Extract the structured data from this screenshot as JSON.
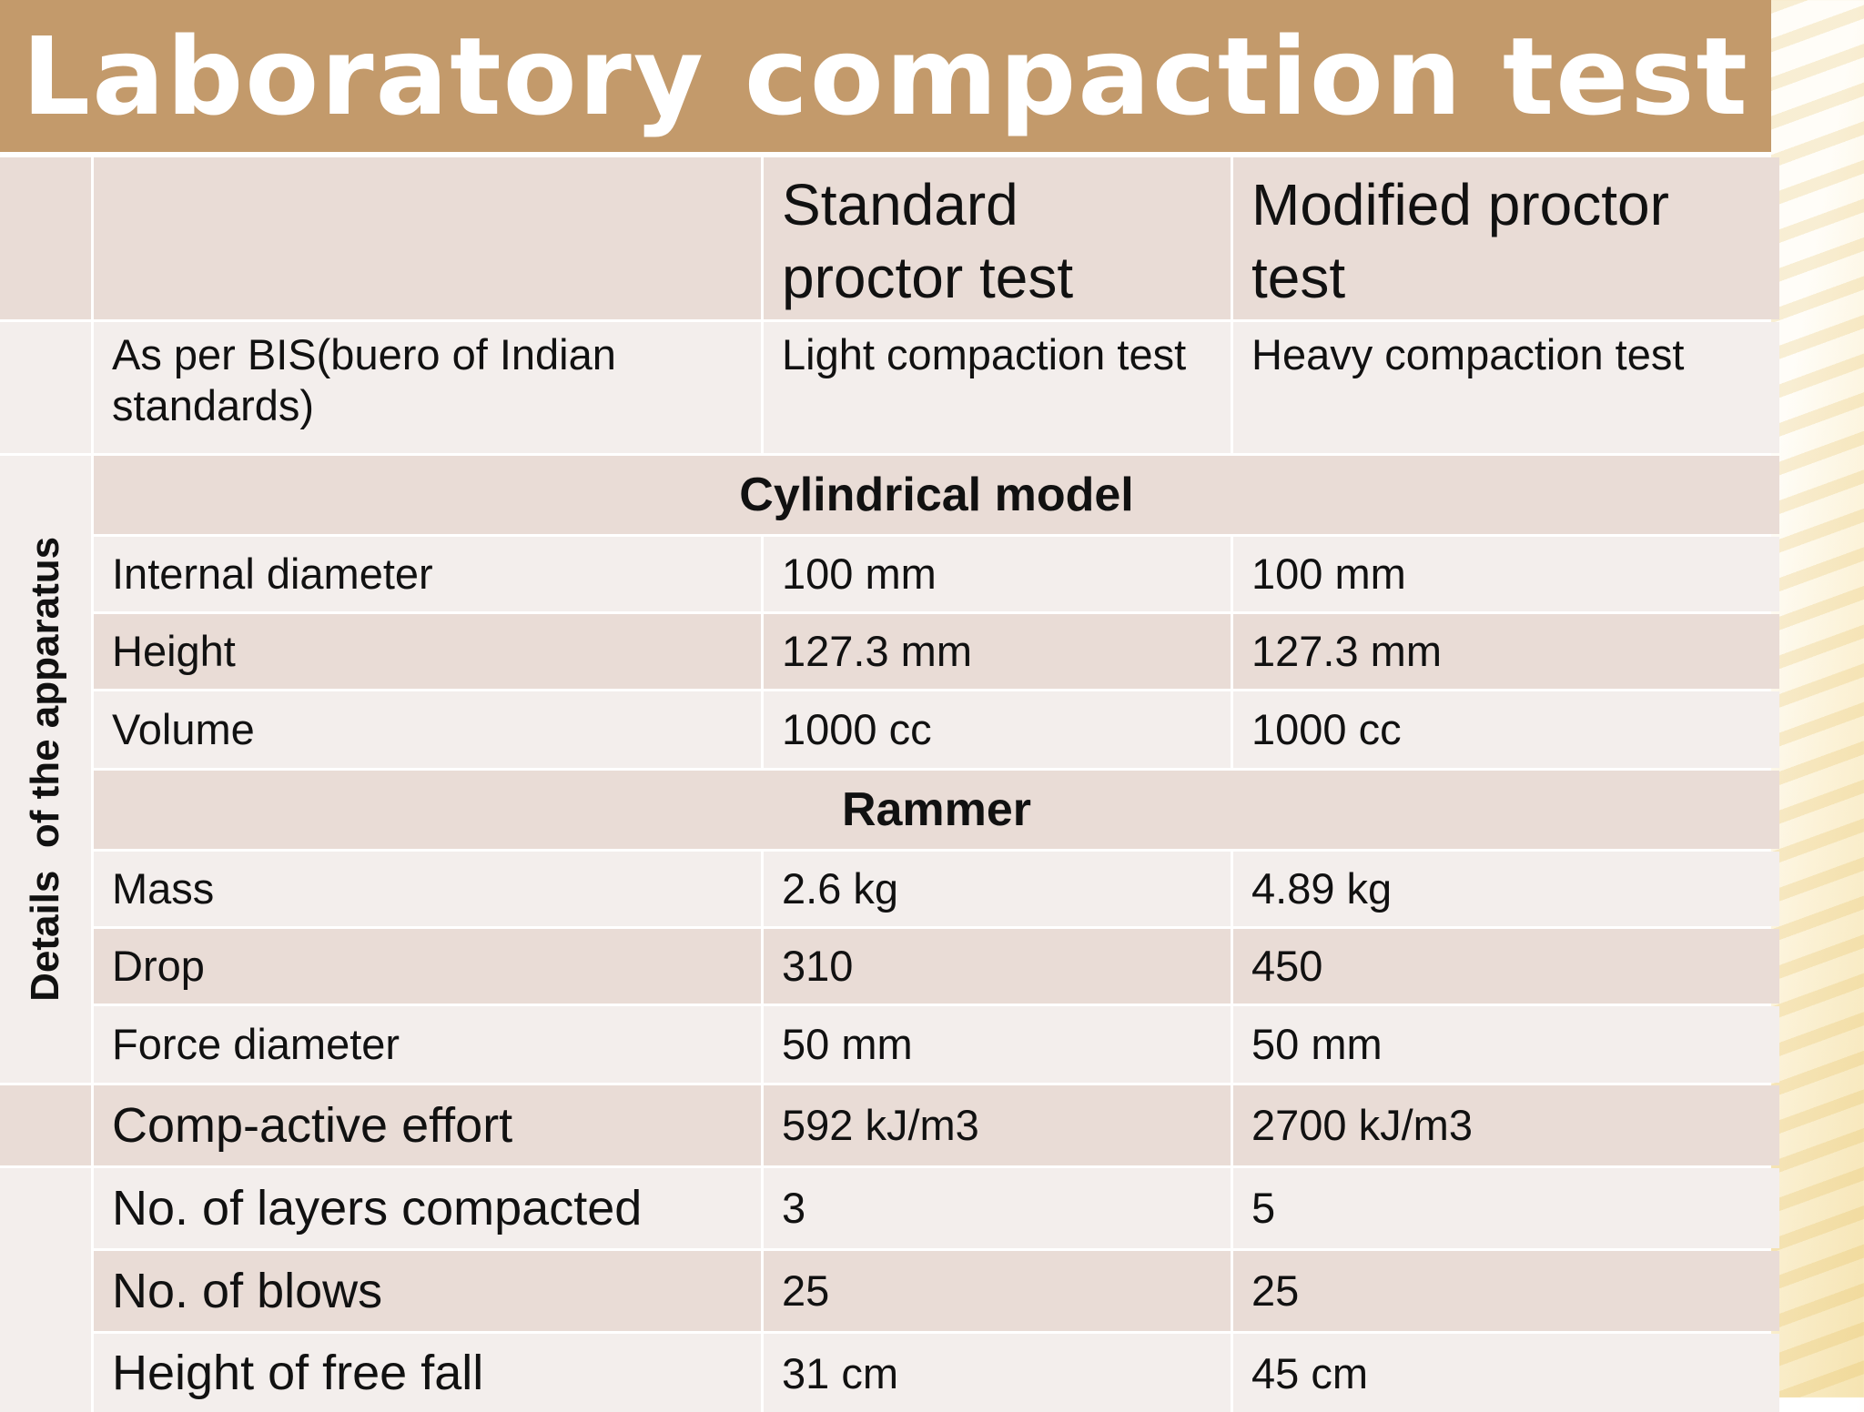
{
  "title": "Laboratory compaction test",
  "table": {
    "col_headers": [
      "Standard proctor test",
      "Modified proctor test"
    ],
    "row_bis": {
      "label": "As per BIS(buero of Indian standards)",
      "standard": "Light compaction test",
      "modified": "Heavy compaction test"
    },
    "side_label": "Details  of the apparatus",
    "section_cylinder": "Cylindrical model",
    "cylinder_rows": [
      {
        "label": "Internal diameter",
        "standard": "100 mm",
        "modified": "100 mm"
      },
      {
        "label": "Height",
        "standard": "127.3 mm",
        "modified": "127.3 mm"
      },
      {
        "label": "Volume",
        "standard": "1000 cc",
        "modified": "1000 cc"
      }
    ],
    "section_rammer": "Rammer",
    "rammer_rows": [
      {
        "label": "Mass",
        "standard": "2.6 kg",
        "modified": "4.89 kg"
      },
      {
        "label": "Drop",
        "standard": "310",
        "modified": "450"
      },
      {
        "label": "Force diameter",
        "standard": "50 mm",
        "modified": "50 mm"
      }
    ],
    "other_rows": [
      {
        "label": "Comp-active effort",
        "standard": "592 kJ/m3",
        "modified": "2700 kJ/m3"
      },
      {
        "label": "No. of layers compacted",
        "standard": "3",
        "modified": "5"
      },
      {
        "label": "No. of  blows",
        "standard": "25",
        "modified": "25"
      },
      {
        "label": "Height of free fall",
        "standard": "31 cm",
        "modified": "45 cm"
      }
    ]
  }
}
